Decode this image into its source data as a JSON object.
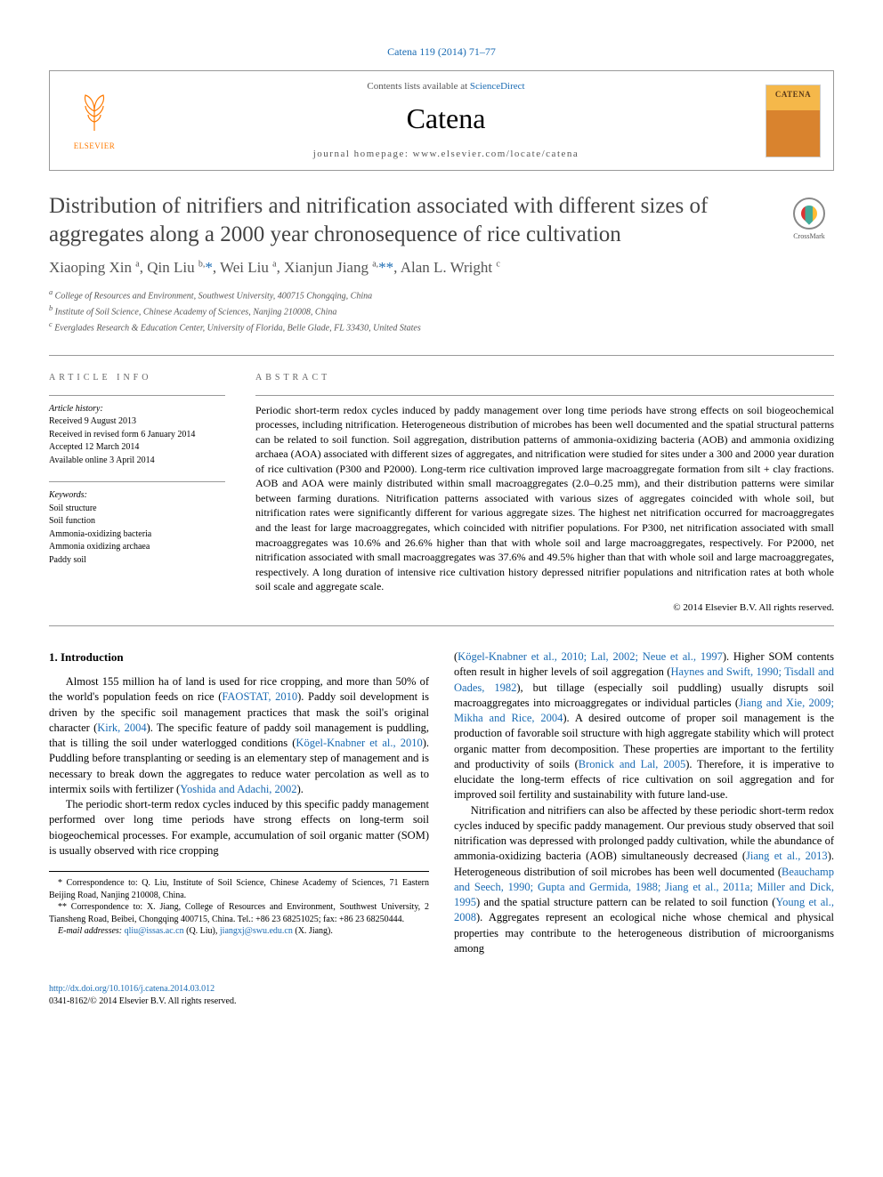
{
  "journal_ref": "Catena 119 (2014) 71–77",
  "header": {
    "contents_prefix": "Contents lists available at ",
    "contents_link": "ScienceDirect",
    "journal_name": "Catena",
    "homepage_prefix": "journal homepage: ",
    "homepage_url": "www.elsevier.com/locate/catena",
    "publisher_name": "ELSEVIER",
    "cover_title": "CATENA"
  },
  "crossmark_label": "CrossMark",
  "title": "Distribution of nitrifiers and nitrification associated with different sizes of aggregates along a 2000 year chronosequence of rice cultivation",
  "authors_html": "Xiaoping Xin <sup>a</sup>, Qin Liu <sup>b,</sup><a href='#'>*</a>, Wei Liu <sup>a</sup>, Xianjun Jiang <sup>a,</sup><a href='#'>**</a>, Alan L. Wright <sup>c</sup>",
  "affiliations": [
    "a College of Resources and Environment, Southwest University, 400715 Chongqing, China",
    "b Institute of Soil Science, Chinese Academy of Sciences, Nanjing 210008, China",
    "c Everglades Research & Education Center, University of Florida, Belle Glade, FL 33430, United States"
  ],
  "info": {
    "label": "article info",
    "history_label": "Article history:",
    "history": [
      "Received 9 August 2013",
      "Received in revised form 6 January 2014",
      "Accepted 12 March 2014",
      "Available online 3 April 2014"
    ],
    "keywords_label": "Keywords:",
    "keywords": [
      "Soil structure",
      "Soil function",
      "Ammonia-oxidizing bacteria",
      "Ammonia oxidizing archaea",
      "Paddy soil"
    ]
  },
  "abstract": {
    "label": "abstract",
    "text": "Periodic short-term redox cycles induced by paddy management over long time periods have strong effects on soil biogeochemical processes, including nitrification. Heterogeneous distribution of microbes has been well documented and the spatial structural patterns can be related to soil function. Soil aggregation, distribution patterns of ammonia-oxidizing bacteria (AOB) and ammonia oxidizing archaea (AOA) associated with different sizes of aggregates, and nitrification were studied for sites under a 300 and 2000 year duration of rice cultivation (P300 and P2000). Long-term rice cultivation improved large macroaggregate formation from silt + clay fractions. AOB and AOA were mainly distributed within small macroaggregates (2.0–0.25 mm), and their distribution patterns were similar between farming durations. Nitrification patterns associated with various sizes of aggregates coincided with whole soil, but nitrification rates were significantly different for various aggregate sizes. The highest net nitrification occurred for macroaggregates and the least for large macroaggregates, which coincided with nitrifier populations. For P300, net nitrification associated with small macroaggregates was 10.6% and 26.6% higher than that with whole soil and large macroaggregates, respectively. For P2000, net nitrification associated with small macroaggregates was 37.6% and 49.5% higher than that with whole soil and large macroaggregates, respectively. A long duration of intensive rice cultivation history depressed nitrifier populations and nitrification rates at both whole soil scale and aggregate scale.",
    "copyright": "© 2014 Elsevier B.V. All rights reserved."
  },
  "body": {
    "heading": "1. Introduction",
    "p1_pre": "Almost 155 million ha of land is used for rice cropping, and more than 50% of the world's population feeds on rice (",
    "p1_link1": "FAOSTAT, 2010",
    "p1_mid1": "). Paddy soil development is driven by the specific soil management practices that mask the soil's original character (",
    "p1_link2": "Kirk, 2004",
    "p1_mid2": "). The specific feature of paddy soil management is puddling, that is tilling the soil under waterlogged conditions (",
    "p1_link3": "Kögel-Knabner et al., 2010",
    "p1_mid3": "). Puddling before transplanting or seeding is an elementary step of management and is necessary to break down the aggregates to reduce water percolation as well as to intermix soils with fertilizer (",
    "p1_link4": "Yoshida and Adachi, 2002",
    "p1_end": ").",
    "p2": "The periodic short-term redox cycles induced by this specific paddy management performed over long time periods have strong effects on long-term soil biogeochemical processes. For example, accumulation of soil organic matter (SOM) is usually observed with rice cropping",
    "p3_pre": "(",
    "p3_link1": "Kögel-Knabner et al., 2010; Lal, 2002; Neue et al., 1997",
    "p3_mid1": "). Higher SOM contents often result in higher levels of soil aggregation (",
    "p3_link2": "Haynes and Swift, 1990; Tisdall and Oades, 1982",
    "p3_mid2": "), but tillage (especially soil puddling) usually disrupts soil macroaggregates into microaggregates or individual particles (",
    "p3_link3": "Jiang and Xie, 2009; Mikha and Rice, 2004",
    "p3_mid3": "). A desired outcome of proper soil management is the production of favorable soil structure with high aggregate stability which will protect organic matter from decomposition. These properties are important to the fertility and productivity of soils (",
    "p3_link4": "Bronick and Lal, 2005",
    "p3_end": "). Therefore, it is imperative to elucidate the long-term effects of rice cultivation on soil aggregation and for improved soil fertility and sustainability with future land-use.",
    "p4_pre": "Nitrification and nitrifiers can also be affected by these periodic short-term redox cycles induced by specific paddy management. Our previous study observed that soil nitrification was depressed with prolonged paddy cultivation, while the abundance of ammonia-oxidizing bacteria (AOB) simultaneously decreased (",
    "p4_link1": "Jiang et al., 2013",
    "p4_mid1": "). Heterogeneous distribution of soil microbes has been well documented (",
    "p4_link2": "Beauchamp and Seech, 1990; Gupta and Germida, 1988; Jiang et al., 2011a; Miller and Dick, 1995",
    "p4_mid2": ") and the spatial structure pattern can be related to soil function (",
    "p4_link3": "Young et al., 2008",
    "p4_end": "). Aggregates represent an ecological niche whose chemical and physical properties may contribute to the heterogeneous distribution of microorganisms among"
  },
  "footnotes": {
    "corr1": "* Correspondence to: Q. Liu, Institute of Soil Science, Chinese Academy of Sciences, 71 Eastern Beijing Road, Nanjing 210008, China.",
    "corr2": "** Correspondence to: X. Jiang, College of Resources and Environment, Southwest University, 2 Tiansheng Road, Beibei, Chongqing 400715, China. Tel.: +86 23 68251025; fax: +86 23 68250444.",
    "email_label": "E-mail addresses: ",
    "email1": "qliu@issas.ac.cn",
    "email1_suffix": " (Q. Liu), ",
    "email2": "jiangxj@swu.edu.cn",
    "email2_suffix": " (X. Jiang)."
  },
  "footer": {
    "doi": "http://dx.doi.org/10.1016/j.catena.2014.03.012",
    "issn_line": "0341-8162/© 2014 Elsevier B.V. All rights reserved."
  }
}
